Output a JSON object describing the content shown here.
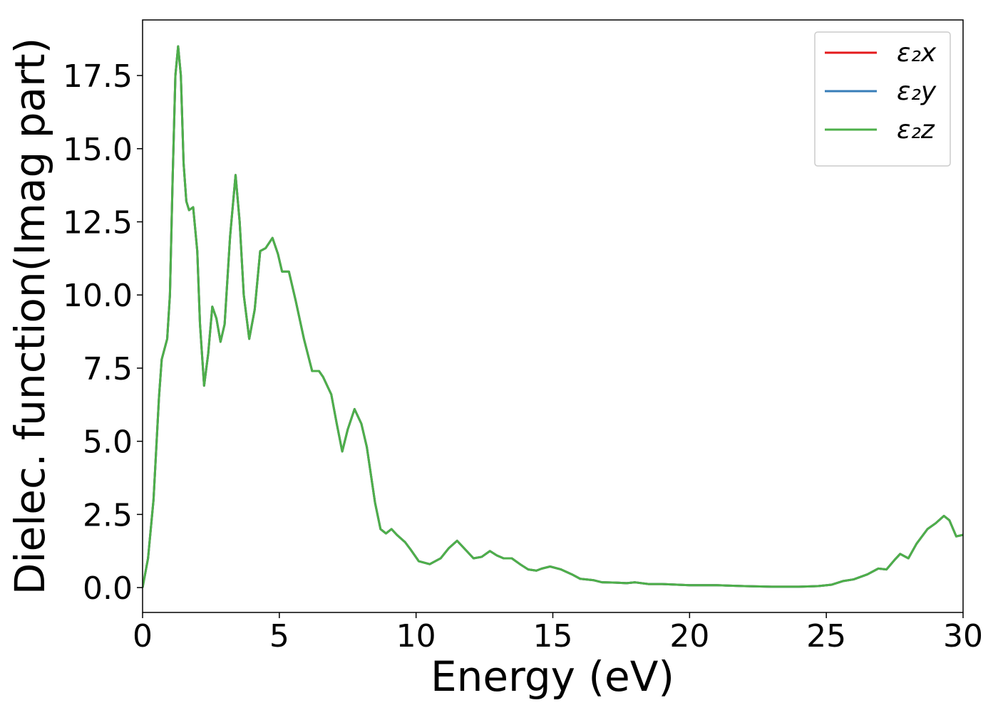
{
  "chart_data": {
    "type": "line",
    "xlabel": "Energy (eV)",
    "ylabel": "Dielec. function(Imag part)",
    "xlim": [
      0,
      30
    ],
    "ylim": [
      -0.85,
      19.4
    ],
    "xticks": [
      0,
      5,
      10,
      15,
      20,
      25,
      30
    ],
    "yticks": [
      {
        "value": 0,
        "label": "0.0"
      },
      2.5,
      {
        "value": 5,
        "label": "5.0"
      },
      7.5,
      {
        "value": 10,
        "label": "10.0"
      },
      12.5,
      {
        "value": 15,
        "label": "15.0"
      },
      17.5
    ],
    "legend": "upper right",
    "grid": false,
    "x": [
      0,
      0.2,
      0.4,
      0.6,
      0.7,
      0.9,
      1.0,
      1.1,
      1.2,
      1.3,
      1.4,
      1.5,
      1.6,
      1.7,
      1.85,
      2.0,
      2.1,
      2.25,
      2.4,
      2.55,
      2.7,
      2.85,
      3.0,
      3.2,
      3.4,
      3.55,
      3.7,
      3.9,
      4.1,
      4.3,
      4.5,
      4.75,
      4.95,
      5.1,
      5.35,
      5.6,
      5.9,
      6.2,
      6.45,
      6.6,
      6.9,
      7.1,
      7.3,
      7.5,
      7.75,
      8.0,
      8.2,
      8.5,
      8.7,
      8.9,
      9.1,
      9.3,
      9.6,
      9.8,
      10.1,
      10.5,
      10.9,
      11.2,
      11.5,
      11.8,
      12.1,
      12.4,
      12.7,
      12.95,
      13.2,
      13.5,
      13.8,
      14.1,
      14.4,
      14.6,
      14.9,
      15.3,
      15.7,
      16.0,
      16.5,
      16.8,
      17.3,
      17.7,
      18.0,
      18.5,
      19,
      20,
      21,
      22,
      23,
      24,
      24.7,
      25.2,
      25.6,
      26,
      26.5,
      26.9,
      27.2,
      27.5,
      27.7,
      28,
      28.3,
      28.7,
      29,
      29.3,
      29.5,
      29.75,
      30
    ],
    "series": [
      {
        "name": "ε₂x",
        "color": "#e41a1c",
        "values": [
          0,
          1.0,
          3.0,
          6.5,
          7.8,
          8.5,
          10,
          14,
          17.5,
          18.5,
          17.5,
          14.5,
          13.2,
          12.9,
          13.0,
          11.5,
          9,
          6.9,
          8,
          9.6,
          9.2,
          8.4,
          9,
          12,
          14.1,
          12.5,
          10,
          8.5,
          9.5,
          11.5,
          11.6,
          11.95,
          11.4,
          10.8,
          10.8,
          9.8,
          8.5,
          7.4,
          7.4,
          7.2,
          6.6,
          5.6,
          4.65,
          5.4,
          6.1,
          5.6,
          4.8,
          2.9,
          2.0,
          1.85,
          2.0,
          1.8,
          1.55,
          1.3,
          0.9,
          0.8,
          1.0,
          1.35,
          1.6,
          1.3,
          1.0,
          1.05,
          1.25,
          1.1,
          1.0,
          1.0,
          0.8,
          0.62,
          0.58,
          0.65,
          0.72,
          0.62,
          0.45,
          0.3,
          0.25,
          0.18,
          0.17,
          0.15,
          0.18,
          0.12,
          0.12,
          0.08,
          0.08,
          0.05,
          0.03,
          0.03,
          0.05,
          0.1,
          0.22,
          0.28,
          0.45,
          0.65,
          0.62,
          0.95,
          1.15,
          1.0,
          1.5,
          2.0,
          2.2,
          2.45,
          2.3,
          1.75,
          1.8
        ]
      },
      {
        "name": "ε₂y",
        "color": "#377eb8",
        "values": [
          0,
          1.0,
          3.0,
          6.5,
          7.8,
          8.5,
          10,
          14,
          17.5,
          18.5,
          17.5,
          14.5,
          13.2,
          12.9,
          13.0,
          11.5,
          9,
          6.9,
          8,
          9.6,
          9.2,
          8.4,
          9,
          12,
          14.1,
          12.5,
          10,
          8.5,
          9.5,
          11.5,
          11.6,
          11.95,
          11.4,
          10.8,
          10.8,
          9.8,
          8.5,
          7.4,
          7.4,
          7.2,
          6.6,
          5.6,
          4.65,
          5.4,
          6.1,
          5.6,
          4.8,
          2.9,
          2.0,
          1.85,
          2.0,
          1.8,
          1.55,
          1.3,
          0.9,
          0.8,
          1.0,
          1.35,
          1.6,
          1.3,
          1.0,
          1.05,
          1.25,
          1.1,
          1.0,
          1.0,
          0.8,
          0.62,
          0.58,
          0.65,
          0.72,
          0.62,
          0.45,
          0.3,
          0.25,
          0.18,
          0.17,
          0.15,
          0.18,
          0.12,
          0.12,
          0.08,
          0.08,
          0.05,
          0.03,
          0.03,
          0.05,
          0.1,
          0.22,
          0.28,
          0.45,
          0.65,
          0.62,
          0.95,
          1.15,
          1.0,
          1.5,
          2.0,
          2.2,
          2.45,
          2.3,
          1.75,
          1.8
        ]
      },
      {
        "name": "ε₂z",
        "color": "#4daf4a",
        "values": [
          0,
          1.0,
          3.0,
          6.5,
          7.8,
          8.5,
          10,
          14,
          17.5,
          18.5,
          17.5,
          14.5,
          13.2,
          12.9,
          13.0,
          11.5,
          9,
          6.9,
          8,
          9.6,
          9.2,
          8.4,
          9,
          12,
          14.1,
          12.5,
          10,
          8.5,
          9.5,
          11.5,
          11.6,
          11.95,
          11.4,
          10.8,
          10.8,
          9.8,
          8.5,
          7.4,
          7.4,
          7.2,
          6.6,
          5.6,
          4.65,
          5.4,
          6.1,
          5.6,
          4.8,
          2.9,
          2.0,
          1.85,
          2.0,
          1.8,
          1.55,
          1.3,
          0.9,
          0.8,
          1.0,
          1.35,
          1.6,
          1.3,
          1.0,
          1.05,
          1.25,
          1.1,
          1.0,
          1.0,
          0.8,
          0.62,
          0.58,
          0.65,
          0.72,
          0.62,
          0.45,
          0.3,
          0.25,
          0.18,
          0.17,
          0.15,
          0.18,
          0.12,
          0.12,
          0.08,
          0.08,
          0.05,
          0.03,
          0.03,
          0.05,
          0.1,
          0.22,
          0.28,
          0.45,
          0.65,
          0.62,
          0.95,
          1.15,
          1.0,
          1.5,
          2.0,
          2.2,
          2.45,
          2.3,
          1.75,
          1.8
        ]
      }
    ]
  }
}
